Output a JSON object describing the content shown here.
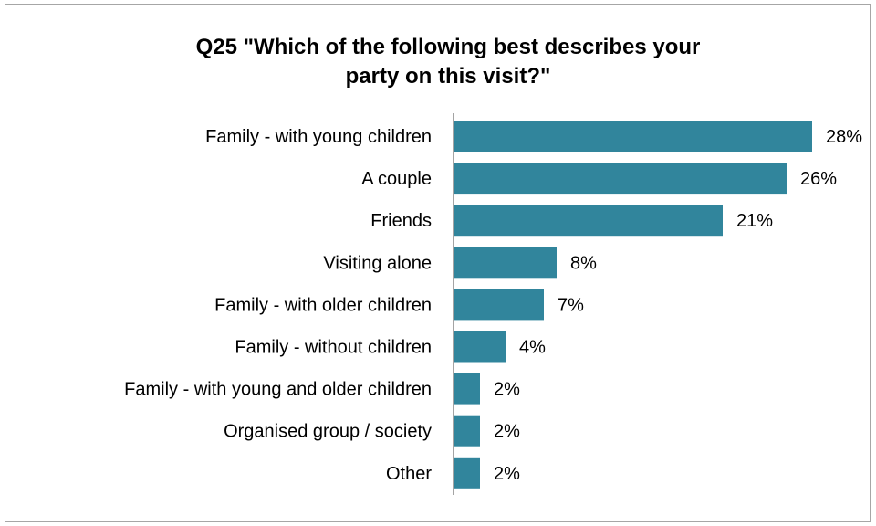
{
  "chart_data": {
    "type": "bar",
    "orientation": "horizontal",
    "title_lines": [
      "Q25 \"Which of the following best describes your",
      "party on this visit?\""
    ],
    "categories": [
      "Family - with young children",
      "A couple",
      "Friends",
      "Visiting alone",
      "Family - with older children",
      "Family - without children",
      "Family - with young and older children",
      "Organised group / society",
      "Other"
    ],
    "values": [
      28,
      26,
      21,
      8,
      7,
      4,
      2,
      2,
      2
    ],
    "value_labels": [
      "28%",
      "26%",
      "21%",
      "8%",
      "7%",
      "4%",
      "2%",
      "2%",
      "2%"
    ],
    "unit": "%",
    "bar_color": "#31859c",
    "grid": false,
    "legend": "none"
  }
}
